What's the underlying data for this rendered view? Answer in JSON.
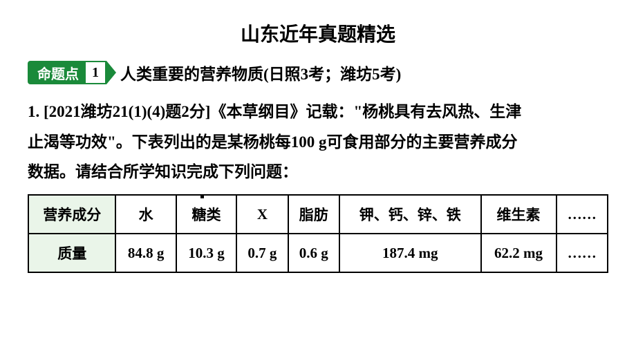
{
  "title": "山东近年真题精选",
  "topic": {
    "tag_label": "命题点",
    "tag_number": "1",
    "name": "人类重要的营养物质",
    "meta": "(日照3考；潍坊5考)"
  },
  "question": {
    "source": "1. [2021潍坊21(1)(4)题2分]",
    "body_a": "《本草纲目》记载：\"杨桃具有去风热、生津",
    "body_b": "止渴等功效\"。下表列出的是某杨桃每100 g可食用部分的主要营养成分",
    "body_c": "数据。请结合所学知识完成下列问题："
  },
  "table": {
    "header_label": "营养成分",
    "row_label": "质量",
    "columns": [
      "水",
      "糖类",
      "X",
      "脂肪",
      "钾、钙、锌、铁",
      "维生素",
      "……"
    ],
    "values": [
      "84.8 g",
      "10.3 g",
      "0.7 g",
      "0.6 g",
      "187.4 mg",
      "62.2 mg",
      "……"
    ]
  },
  "colors": {
    "accent_green": "#1a8a3a",
    "table_header_bg": "#eaf5e9",
    "text": "#000000",
    "background": "#ffffff"
  }
}
